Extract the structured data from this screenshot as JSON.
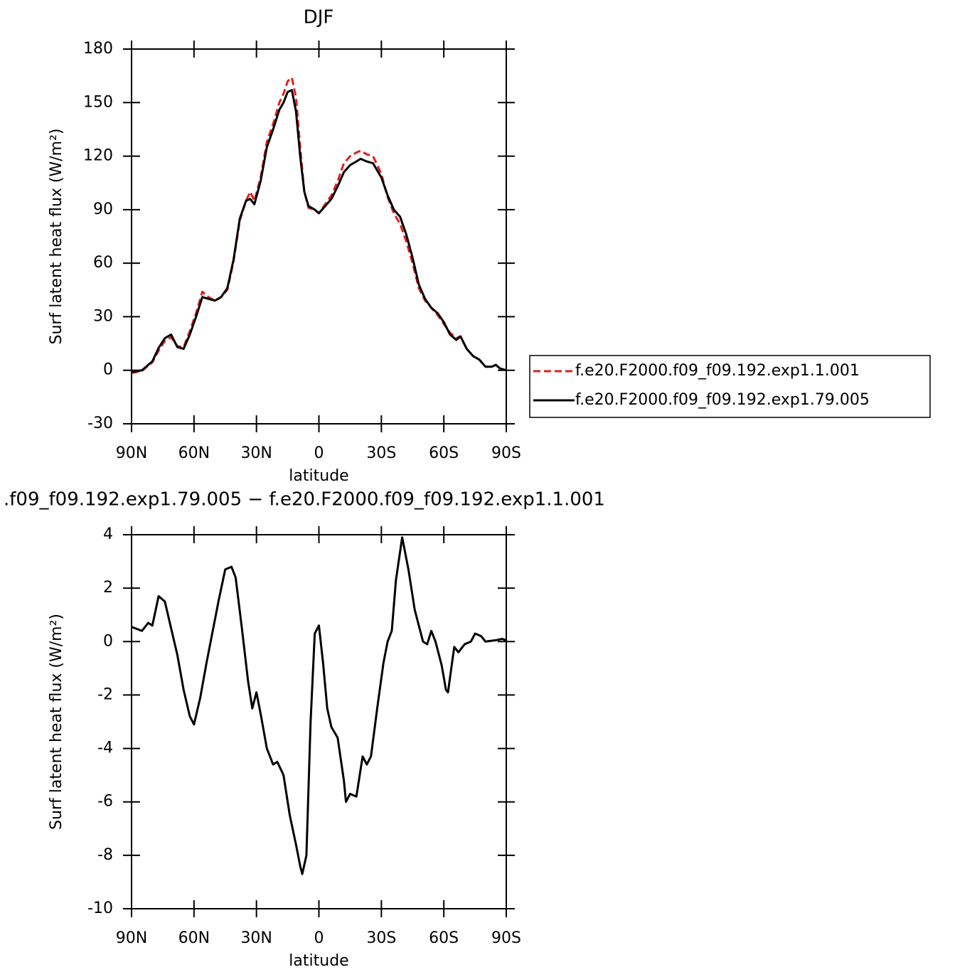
{
  "chart_data": [
    {
      "type": "line",
      "title": "DJF",
      "x_label": "latitude",
      "y_label": "Surf latent heat flux (W/m²)",
      "x": [
        90,
        85,
        80,
        77,
        74,
        71,
        68,
        65,
        62,
        59,
        56,
        53,
        50,
        47,
        44,
        41,
        38,
        35,
        33,
        31,
        28,
        25,
        22,
        19,
        17,
        15,
        13,
        11,
        9,
        7,
        5,
        2,
        0,
        -3,
        -6,
        -9,
        -12,
        -15,
        -18,
        -20,
        -23,
        -26,
        -30,
        -33,
        -36,
        -39,
        -42,
        -45,
        -48,
        -51,
        -54,
        -57,
        -60,
        -63,
        -66,
        -68,
        -71,
        -74,
        -77,
        -80,
        -83,
        -85,
        -87,
        -90
      ],
      "series": [
        {
          "name": "f.e20.F2000.f09_f09.192.exp1.1.001",
          "color": "#e0201b",
          "dashed": true,
          "values": [
            -1.5,
            -0.4,
            4.5,
            11,
            16.5,
            18.5,
            13.5,
            13,
            22,
            32,
            44,
            41,
            39,
            41,
            45,
            61,
            84,
            95,
            100,
            95,
            108,
            128,
            138,
            150,
            155,
            162,
            164,
            153,
            125,
            100,
            91,
            90,
            88,
            93,
            98,
            106,
            116,
            120,
            122,
            123,
            121,
            120,
            110,
            97,
            88,
            82,
            72,
            60,
            46,
            39,
            35,
            31,
            26,
            21,
            18,
            19,
            12,
            8,
            6,
            2,
            2,
            3,
            1,
            0
          ]
        },
        {
          "name": "f.e20.F2000.f09_f09.192.exp1.79.005",
          "color": "#000000",
          "dashed": false,
          "values": [
            -1,
            0,
            5,
            12.5,
            18,
            20,
            13,
            12,
            20,
            30,
            41,
            40,
            39,
            41,
            46,
            62,
            85,
            95,
            96,
            93,
            106,
            125,
            135,
            146,
            150,
            156,
            157,
            145,
            120,
            100,
            92,
            90,
            88,
            92,
            96,
            103,
            111,
            115,
            117,
            118.5,
            117,
            116,
            108,
            98,
            90,
            86,
            76,
            63,
            48,
            40,
            35,
            32,
            27,
            20,
            17,
            19,
            12,
            8,
            6,
            2,
            2,
            3,
            1,
            0
          ]
        }
      ],
      "xlim": [
        90,
        -90
      ],
      "xticks": [
        {
          "value": 90,
          "label": "90N"
        },
        {
          "value": 60,
          "label": "60N"
        },
        {
          "value": 30,
          "label": "30N"
        },
        0,
        {
          "value": -30,
          "label": "30S"
        },
        {
          "value": -60,
          "label": "60S"
        },
        {
          "value": -90,
          "label": "90S"
        }
      ],
      "ylim": [
        -30,
        180
      ],
      "yticks": [
        -30,
        0,
        30,
        60,
        90,
        120,
        150,
        180
      ],
      "legend": "right"
    },
    {
      "type": "line",
      "title": ".f09_f09.192.exp1.79.005 − f.e20.F2000.f09_f09.192.exp1.1.001",
      "x_label": "latitude",
      "y_label": "Surf latent heat flux (W/m²)",
      "x": [
        90,
        85,
        82,
        80,
        77,
        74,
        71,
        68,
        65,
        62,
        60,
        57,
        54,
        51,
        48,
        45,
        42,
        40,
        37,
        34,
        32,
        30,
        28,
        25,
        22,
        20,
        17,
        14,
        11,
        9,
        8,
        6,
        4,
        2,
        0,
        -2,
        -4,
        -6,
        -9,
        -12,
        -13,
        -15,
        -18,
        -21,
        -23,
        -25,
        -28,
        -31,
        -33,
        -35,
        -37,
        -40,
        -43,
        -46,
        -50,
        -52,
        -54,
        -56,
        -59,
        -61,
        -62,
        -65,
        -67,
        -70,
        -73,
        -75,
        -78,
        -80,
        -85,
        -88,
        -90
      ],
      "series": [
        {
          "color": "#000000",
          "dashed": false,
          "values": [
            0.55,
            0.4,
            0.7,
            0.6,
            1.7,
            1.5,
            0.5,
            -0.5,
            -1.8,
            -2.8,
            -3.1,
            -2.1,
            -0.8,
            0.4,
            1.6,
            2.7,
            2.8,
            2.4,
            0.5,
            -1.5,
            -2.5,
            -1.9,
            -2.7,
            -4.0,
            -4.6,
            -4.5,
            -5.0,
            -6.5,
            -7.6,
            -8.4,
            -8.7,
            -8.0,
            -3.0,
            0.3,
            0.6,
            -0.8,
            -2.5,
            -3.2,
            -3.6,
            -5.2,
            -6.0,
            -5.7,
            -5.8,
            -4.3,
            -4.6,
            -4.3,
            -2.5,
            -0.8,
            0.0,
            0.4,
            2.3,
            3.9,
            2.7,
            1.2,
            0.0,
            -0.1,
            0.4,
            0.0,
            -0.9,
            -1.8,
            -1.9,
            -0.2,
            -0.4,
            -0.1,
            0.0,
            0.3,
            0.2,
            0.0,
            0.05,
            0.1,
            0.05
          ]
        }
      ],
      "xlim": [
        90,
        -90
      ],
      "xticks": [
        {
          "value": 90,
          "label": "90N"
        },
        {
          "value": 60,
          "label": "60N"
        },
        {
          "value": 30,
          "label": "30N"
        },
        0,
        {
          "value": -30,
          "label": "30S"
        },
        {
          "value": -60,
          "label": "60S"
        },
        {
          "value": -90,
          "label": "90S"
        }
      ],
      "ylim": [
        -10,
        4
      ],
      "yticks": [
        -10,
        -8,
        -6,
        -4,
        -2,
        0,
        2,
        4
      ]
    }
  ]
}
